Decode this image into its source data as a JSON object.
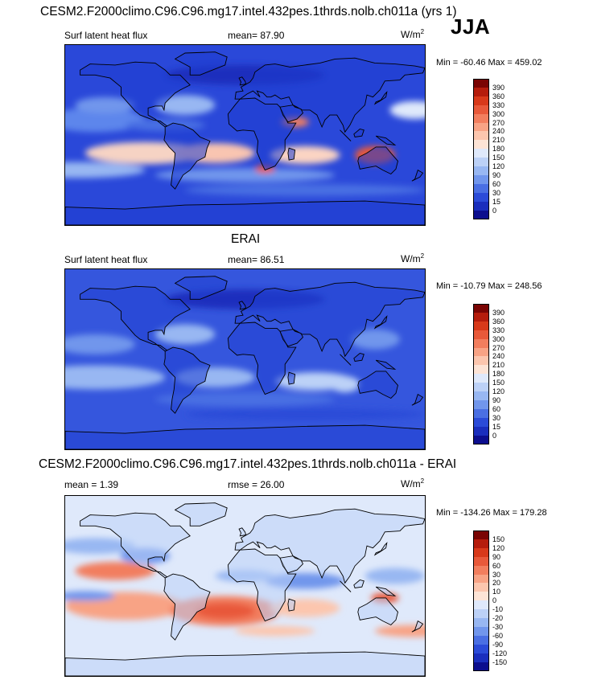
{
  "header": {
    "model_title": "CESM2.F2000climo.C96.C96.mg17.intel.432pes.1thrds.nolb.ch011a (yrs 1)",
    "season": "JJA"
  },
  "panels": [
    {
      "id": "model",
      "heading": "",
      "variable": "Surf latent heat flux",
      "stat_left": "",
      "mean_text": "mean=  87.90",
      "units_base": "W/m",
      "units_exp": "2",
      "minmax": "Min = -60.46 Max = 459.02",
      "style": "model"
    },
    {
      "id": "obs",
      "heading": "ERAI",
      "variable": "Surf latent heat flux",
      "stat_left": "",
      "mean_text": "mean=  86.51",
      "units_base": "W/m",
      "units_exp": "2",
      "minmax": "Min = -10.79 Max = 248.56",
      "style": "obs"
    },
    {
      "id": "diff",
      "heading": "CESM2.F2000climo.C96.C96.mg17.intel.432pes.1thrds.nolb.ch011a - ERAI",
      "variable": "mean =   1.39",
      "stat_left": "",
      "mean_text": "rmse =  26.00",
      "units_base": "W/m",
      "units_exp": "2",
      "minmax": "Min = -134.26 Max = 179.28",
      "style": "diff"
    }
  ],
  "colorbars": {
    "flux": {
      "labels": [
        "390",
        "360",
        "330",
        "300",
        "270",
        "240",
        "210",
        "180",
        "150",
        "120",
        "90",
        "60",
        "30",
        "15",
        "0"
      ],
      "colors": [
        "#7a0403",
        "#b51c0c",
        "#d8391a",
        "#e8593a",
        "#f27e5e",
        "#f8a385",
        "#fcc6ae",
        "#fde4d6",
        "#dfe9fb",
        "#bcd1f7",
        "#98b7f2",
        "#7196ec",
        "#4a6fe3",
        "#2b4bd8",
        "#1a2ebd",
        "#0c0e8e"
      ]
    },
    "diff": {
      "labels": [
        "150",
        "120",
        "90",
        "60",
        "30",
        "20",
        "10",
        "0",
        "-10",
        "-20",
        "-30",
        "-60",
        "-90",
        "-120",
        "-150"
      ],
      "colors": [
        "#7a0403",
        "#b51c0c",
        "#d8391a",
        "#e8593a",
        "#f27e5e",
        "#f8a385",
        "#fcc6ae",
        "#fde4d6",
        "#dfe9fb",
        "#bcd1f7",
        "#98b7f2",
        "#7196ec",
        "#4a6fe3",
        "#2b4bd8",
        "#1a2ebd",
        "#0c0e8e"
      ]
    }
  }
}
